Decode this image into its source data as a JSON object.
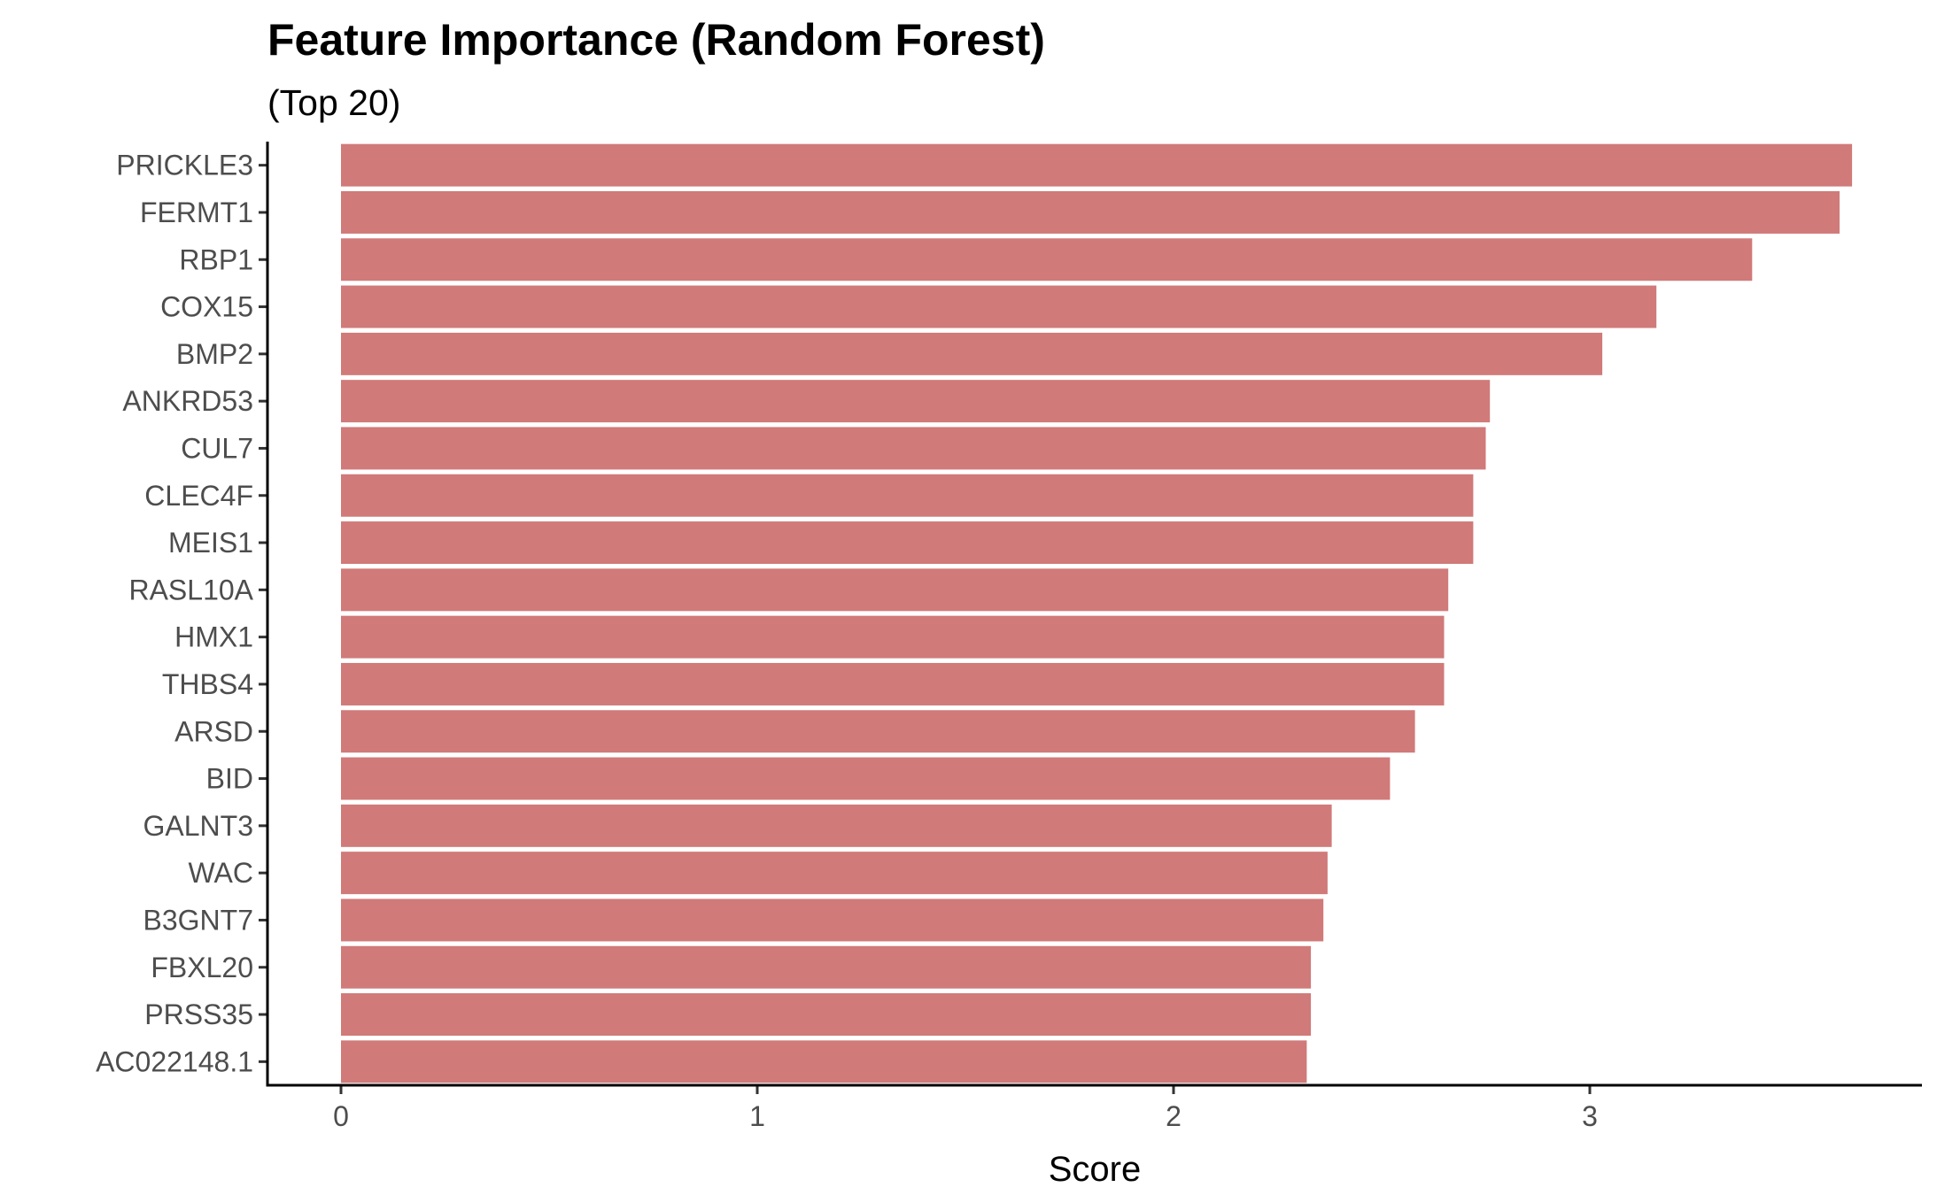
{
  "chart_data": {
    "type": "bar",
    "orientation": "horizontal",
    "title": "Feature Importance (Random Forest)",
    "subtitle": "(Top 20)",
    "xlabel": "Score",
    "ylabel": "",
    "categories": [
      "PRICKLE3",
      "FERMT1",
      "RBP1",
      "COX15",
      "BMP2",
      "ANKRD53",
      "CUL7",
      "CLEC4F",
      "MEIS1",
      "RASL10A",
      "HMX1",
      "THBS4",
      "ARSD",
      "BID",
      "GALNT3",
      "WAC",
      "B3GNT7",
      "FBXL20",
      "PRSS35",
      "AC022148.1"
    ],
    "values": [
      3.63,
      3.6,
      3.39,
      3.16,
      3.03,
      2.76,
      2.75,
      2.72,
      2.72,
      2.66,
      2.65,
      2.65,
      2.58,
      2.52,
      2.38,
      2.37,
      2.36,
      2.33,
      2.33,
      2.32
    ],
    "xlim": [
      -0.18,
      3.82
    ],
    "xticks": [
      0,
      1,
      2,
      3
    ],
    "bar_color": "#d07a79",
    "grid": false,
    "legend": "none"
  }
}
